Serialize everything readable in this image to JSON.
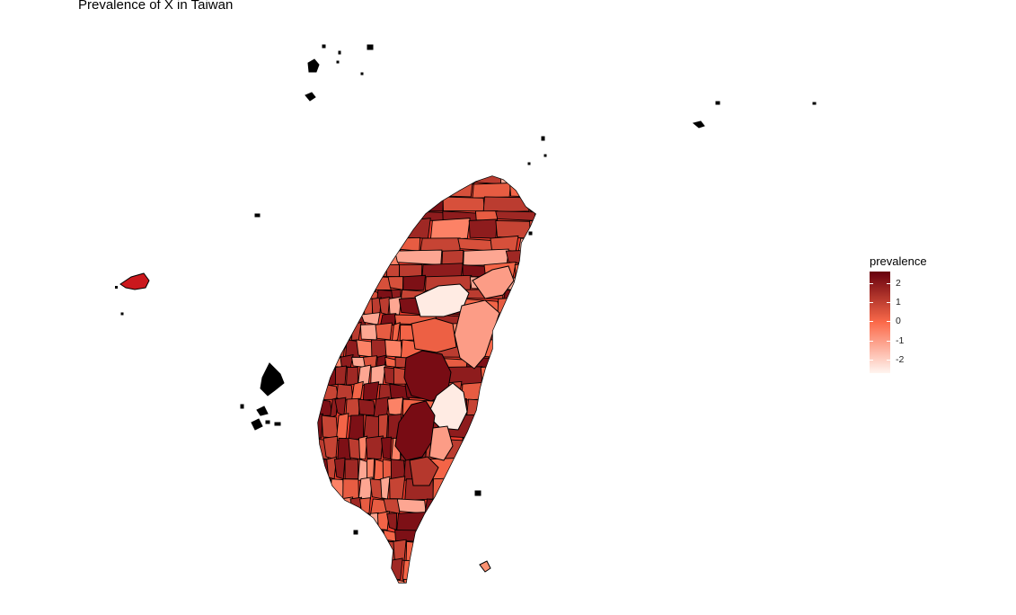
{
  "title": "Prevalence of X in Taiwan",
  "legend": {
    "title": "prevalence",
    "ticks": [
      {
        "value": 2,
        "label": "2"
      },
      {
        "value": 1,
        "label": "1"
      },
      {
        "value": 0,
        "label": "0"
      },
      {
        "value": -1,
        "label": "-1"
      },
      {
        "value": -2,
        "label": "-2"
      }
    ],
    "range": [
      -2.7,
      2.6
    ],
    "color_low": "#fff5f0",
    "color_mid": "#fb6a4a",
    "color_high": "#67000d"
  },
  "map": {
    "style": "choropleth",
    "region": "Taiwan",
    "border_color": "#000000",
    "background": "#ffffff",
    "level_examples": {
      "highest": 2.3,
      "mid_high": 1.2,
      "middle": 0.2,
      "mid_low": -1.0,
      "lowest": -2.5
    }
  }
}
